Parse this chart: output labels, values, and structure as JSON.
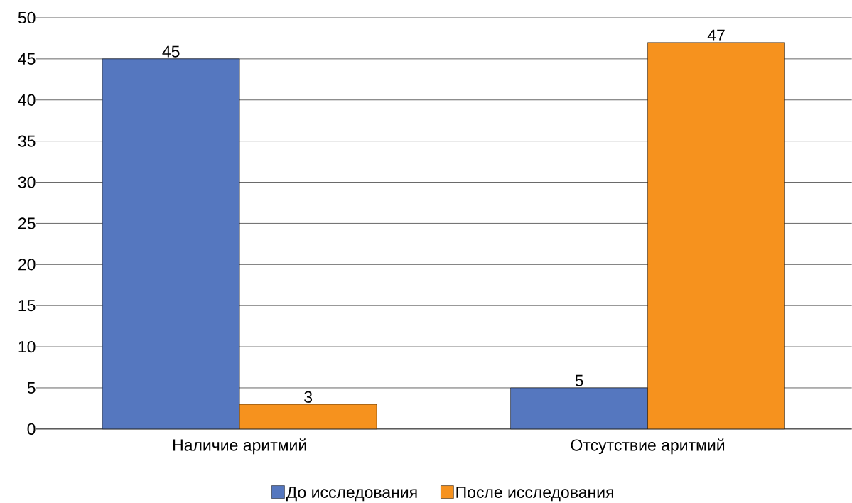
{
  "chart_data": {
    "type": "bar",
    "categories": [
      "Наличие аритмий",
      "Отсутствие аритмий"
    ],
    "series": [
      {
        "name": "До исследования",
        "color": "#5577bf",
        "values": [
          45,
          5
        ]
      },
      {
        "name": "После исследования",
        "color": "#f6921e",
        "values": [
          3,
          47
        ]
      }
    ],
    "ylim": [
      0,
      50
    ],
    "yticks": [
      0,
      5,
      10,
      15,
      20,
      25,
      30,
      35,
      40,
      45,
      50
    ],
    "grid": "y",
    "legend": "bottom",
    "data_labels": true
  }
}
